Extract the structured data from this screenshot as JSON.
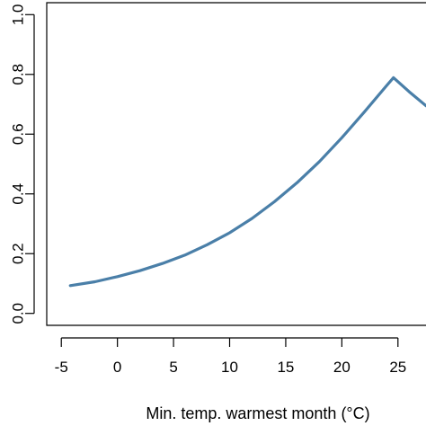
{
  "chart_data": {
    "type": "line",
    "title": "",
    "xlabel": "Min. temp. warmest month (°C)",
    "ylabel": "",
    "xlim": [
      -6.3,
      27.5
    ],
    "ylim": [
      -0.04,
      1.04
    ],
    "x_ticks": [
      -5,
      0,
      5,
      10,
      15,
      20,
      25
    ],
    "x_tick_labels": [
      "-5",
      "0",
      "5",
      "10",
      "15",
      "20",
      "25"
    ],
    "y_ticks": [
      0.0,
      0.2,
      0.4,
      0.6,
      0.8,
      1.0
    ],
    "y_tick_labels": [
      "0.0",
      "0.2",
      "0.4",
      "0.6",
      "0.8",
      "1.0"
    ],
    "grid": false,
    "series": [
      {
        "color": "#4a7fa8",
        "x": [
          -4.2,
          -2,
          0,
          2,
          4,
          6,
          8,
          10,
          12,
          14,
          16,
          18,
          20,
          22,
          24,
          24.6,
          26,
          27.5
        ],
        "y": [
          0.093,
          0.106,
          0.123,
          0.143,
          0.167,
          0.195,
          0.23,
          0.27,
          0.318,
          0.374,
          0.437,
          0.508,
          0.588,
          0.674,
          0.763,
          0.789,
          0.742,
          0.695
        ]
      }
    ]
  }
}
